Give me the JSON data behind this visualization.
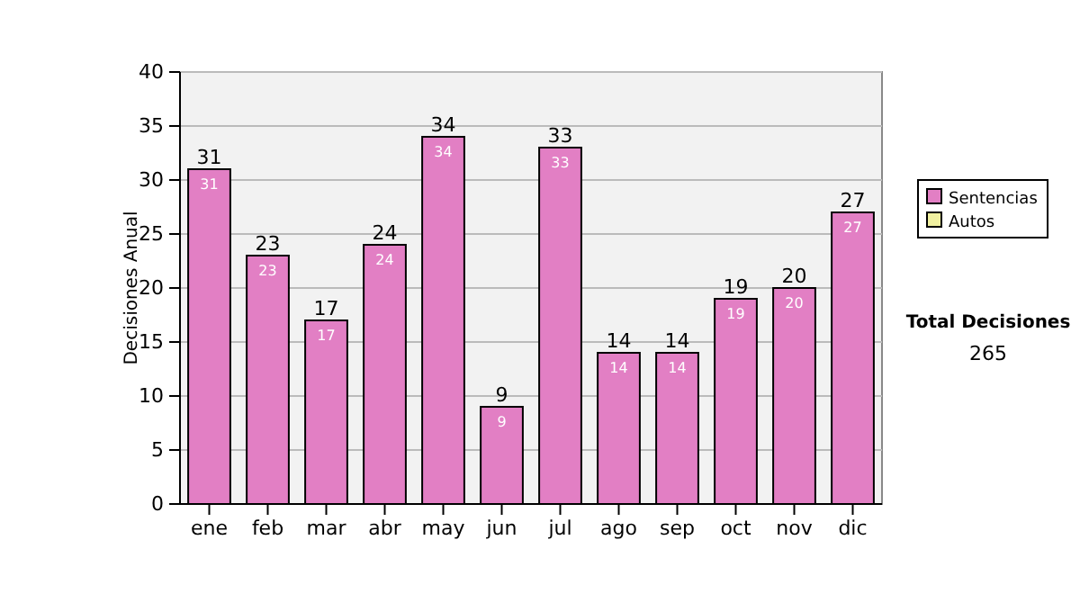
{
  "chart_data": {
    "type": "bar",
    "stacked": true,
    "ylabel": "Decisiones Anual",
    "categories": [
      "ene",
      "feb",
      "mar",
      "abr",
      "may",
      "jun",
      "jul",
      "ago",
      "sep",
      "oct",
      "nov",
      "dic"
    ],
    "series": [
      {
        "name": "Sentencias",
        "color": "#e27fc4",
        "values": [
          31,
          23,
          17,
          24,
          34,
          9,
          33,
          14,
          14,
          19,
          20,
          27
        ],
        "value_labels": [
          "31",
          "23",
          "17",
          "24",
          "34",
          "9",
          "33",
          "14",
          "14",
          "19",
          "20",
          "27"
        ]
      },
      {
        "name": "Autos",
        "color": "#f0f0a0",
        "values": [
          0,
          0,
          0,
          0,
          0,
          0,
          0,
          0,
          0,
          0,
          0,
          0
        ]
      }
    ],
    "totals": [
      "31",
      "23",
      "17",
      "24",
      "34",
      "9",
      "33",
      "14",
      "14",
      "19",
      "20",
      "27"
    ],
    "ylim": [
      0,
      40
    ],
    "yticks": [
      0,
      5,
      10,
      15,
      20,
      25,
      30,
      35,
      40
    ],
    "grid": "y",
    "legend": "right",
    "annotations": [
      "Total Decisiones",
      "265"
    ]
  }
}
